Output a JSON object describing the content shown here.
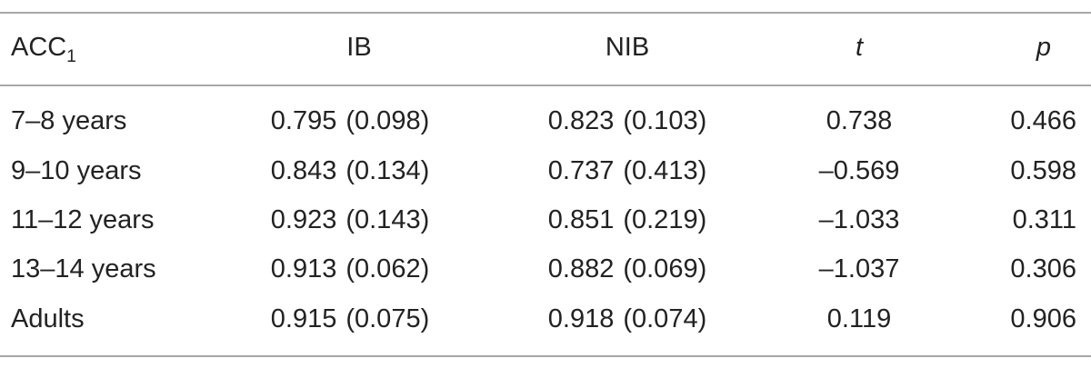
{
  "table": {
    "header": {
      "label_main": "ACC",
      "label_sub": "1",
      "ib": "IB",
      "nib": "NIB",
      "t": "t",
      "p": "p"
    },
    "rows": [
      {
        "label": "7–8 years",
        "ib_mean": "0.795",
        "ib_sd": "(0.098)",
        "nib_mean": "0.823",
        "nib_sd": "(0.103)",
        "t": "0.738",
        "p": "0.466"
      },
      {
        "label": "9–10 years",
        "ib_mean": "0.843",
        "ib_sd": "(0.134)",
        "nib_mean": "0.737",
        "nib_sd": "(0.413)",
        "t": "–0.569",
        "p": "0.598"
      },
      {
        "label": "11–12 years",
        "ib_mean": "0.923",
        "ib_sd": "(0.143)",
        "nib_mean": "0.851",
        "nib_sd": "(0.219)",
        "t": "–1.033",
        "p": "0.311"
      },
      {
        "label": "13–14 years",
        "ib_mean": "0.913",
        "ib_sd": "(0.062)",
        "nib_mean": "0.882",
        "nib_sd": "(0.069)",
        "t": "–1.037",
        "p": "0.306"
      },
      {
        "label": "Adults",
        "ib_mean": "0.915",
        "ib_sd": "(0.075)",
        "nib_mean": "0.918",
        "nib_sd": "(0.074)",
        "t": "0.119",
        "p": "0.906"
      }
    ]
  }
}
